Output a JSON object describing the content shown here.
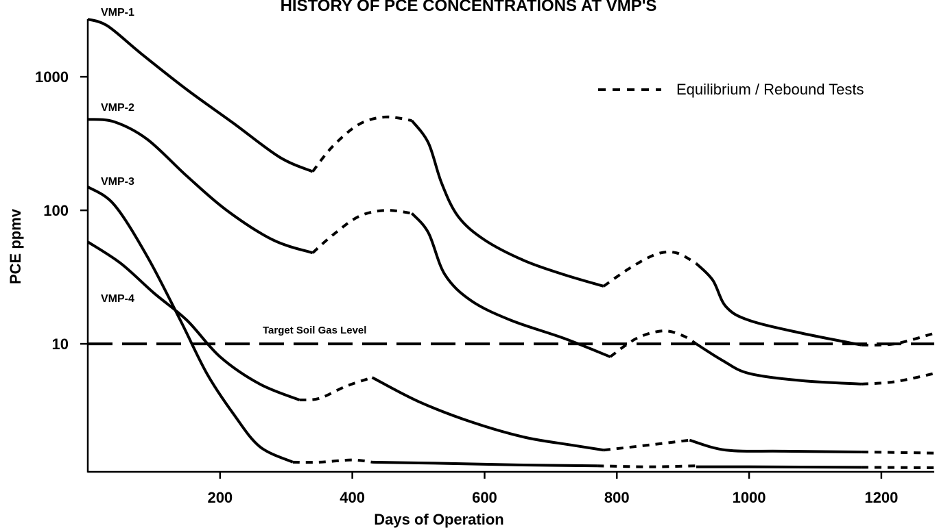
{
  "chart_data": {
    "type": "line",
    "title": "HISTORY OF PCE CONCENTRATIONS AT VMP'S",
    "xlabel": "Days of Operation",
    "ylabel": "PCE ppmv",
    "yscale": "log",
    "xlim": [
      0,
      1280
    ],
    "ylim": [
      1.1,
      2700
    ],
    "xticks": [
      200,
      400,
      600,
      800,
      1000,
      1200
    ],
    "yticks": [
      10,
      100,
      1000
    ],
    "xtick_labels": [
      "200",
      "400",
      "600",
      "800",
      "1000",
      "1200"
    ],
    "ytick_labels": [
      "10",
      "100",
      "1000"
    ],
    "legend": {
      "position": "top-right",
      "label": "Equilibrium / Rebound Tests"
    },
    "target": {
      "label": "Target Soil Gas Level",
      "value": 10
    },
    "series": [
      {
        "name": "VMP-1",
        "segments": [
          {
            "style": "solid",
            "x": [
              0,
              30,
              80,
              150,
              220,
              290,
              340
            ],
            "y": [
              2700,
              2400,
              1500,
              800,
              450,
              250,
              195
            ]
          },
          {
            "style": "dotted",
            "x": [
              340,
              370,
              410,
              450,
              490
            ],
            "y": [
              195,
              300,
              440,
              500,
              470
            ]
          },
          {
            "style": "solid",
            "x": [
              490,
              515,
              535,
              560,
              600,
              660,
              720,
              780
            ],
            "y": [
              470,
              320,
              160,
              90,
              60,
              42,
              33,
              27
            ]
          },
          {
            "style": "dotted",
            "x": [
              780,
              820,
              860,
              890,
              920
            ],
            "y": [
              27,
              37,
              47,
              48,
              40
            ]
          },
          {
            "style": "solid",
            "x": [
              920,
              945,
              965,
              1000,
              1080,
              1170
            ],
            "y": [
              40,
              30,
              19,
              15,
              12,
              9.8
            ]
          },
          {
            "style": "dotted",
            "x": [
              1170,
              1220,
              1280
            ],
            "y": [
              9.8,
              10,
              12
            ]
          }
        ]
      },
      {
        "name": "VMP-2",
        "segments": [
          {
            "style": "solid",
            "x": [
              0,
              40,
              90,
              150,
              210,
              280,
              340
            ],
            "y": [
              480,
              460,
              340,
              180,
              100,
              60,
              48
            ]
          },
          {
            "style": "dotted",
            "x": [
              340,
              370,
              410,
              450,
              490
            ],
            "y": [
              48,
              65,
              90,
              100,
              95
            ]
          },
          {
            "style": "solid",
            "x": [
              490,
              515,
              540,
              580,
              640,
              720,
              790
            ],
            "y": [
              95,
              68,
              33,
              21,
              15,
              11,
              8
            ]
          },
          {
            "style": "dotted",
            "x": [
              790,
              830,
              870,
              900,
              920
            ],
            "y": [
              8,
              11,
              12.5,
              11.5,
              10
            ]
          },
          {
            "style": "solid",
            "x": [
              920,
              960,
              1000,
              1080,
              1170
            ],
            "y": [
              10,
              7.5,
              6,
              5.3,
              5
            ]
          },
          {
            "style": "dotted",
            "x": [
              1170,
              1220,
              1280
            ],
            "y": [
              5,
              5.2,
              6
            ]
          }
        ]
      },
      {
        "name": "VMP-3",
        "segments": [
          {
            "style": "solid",
            "x": [
              0,
              40,
              90,
              140,
              180,
              220,
              260,
              310
            ],
            "y": [
              150,
              110,
              45,
              15,
              6,
              3,
              1.7,
              1.3
            ]
          },
          {
            "style": "dotted",
            "x": [
              310,
              350,
              400,
              430
            ],
            "y": [
              1.3,
              1.3,
              1.35,
              1.3
            ]
          },
          {
            "style": "solid",
            "x": [
              430,
              550,
              650,
              770
            ],
            "y": [
              1.3,
              1.27,
              1.24,
              1.22
            ]
          },
          {
            "style": "dotted",
            "x": [
              770,
              850,
              920
            ],
            "y": [
              1.22,
              1.2,
              1.22
            ]
          },
          {
            "style": "solid",
            "x": [
              920,
              1000,
              1170
            ],
            "y": [
              1.2,
              1.2,
              1.19
            ]
          },
          {
            "style": "dotted",
            "x": [
              1170,
              1280
            ],
            "y": [
              1.19,
              1.18
            ]
          }
        ]
      },
      {
        "name": "VMP-4",
        "segments": [
          {
            "style": "solid",
            "x": [
              0,
              50,
              100,
              150,
              200,
              260,
              320
            ],
            "y": [
              58,
              40,
              24,
              15,
              8,
              5,
              3.8
            ]
          },
          {
            "style": "dotted",
            "x": [
              320,
              350,
              390,
              430
            ],
            "y": [
              3.8,
              3.9,
              4.8,
              5.6
            ]
          },
          {
            "style": "solid",
            "x": [
              430,
              500,
              580,
              660,
              730,
              780
            ],
            "y": [
              5.6,
              3.7,
              2.6,
              2,
              1.75,
              1.6
            ]
          },
          {
            "style": "dotted",
            "x": [
              780,
              850,
              910
            ],
            "y": [
              1.6,
              1.75,
              1.9
            ]
          },
          {
            "style": "solid",
            "x": [
              910,
              965,
              1050,
              1170
            ],
            "y": [
              1.9,
              1.6,
              1.57,
              1.55
            ]
          },
          {
            "style": "dotted",
            "x": [
              1170,
              1280
            ],
            "y": [
              1.55,
              1.52
            ]
          }
        ]
      }
    ]
  }
}
